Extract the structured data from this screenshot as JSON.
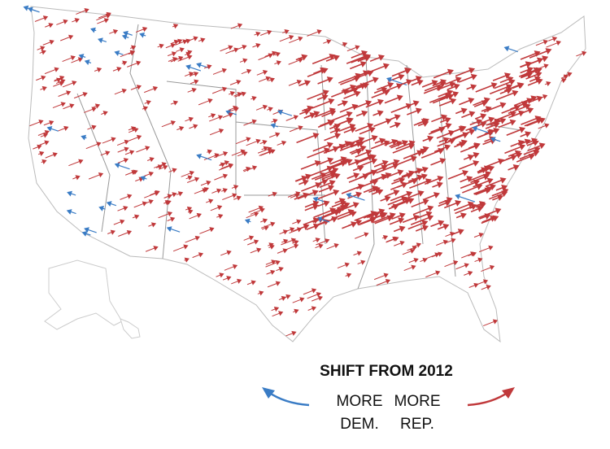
{
  "legend": {
    "title": "SHIFT FROM 2012",
    "left": {
      "line1": "MORE",
      "line2": "DEM."
    },
    "right": {
      "line1": "MORE",
      "line2": "REP."
    }
  }
}
